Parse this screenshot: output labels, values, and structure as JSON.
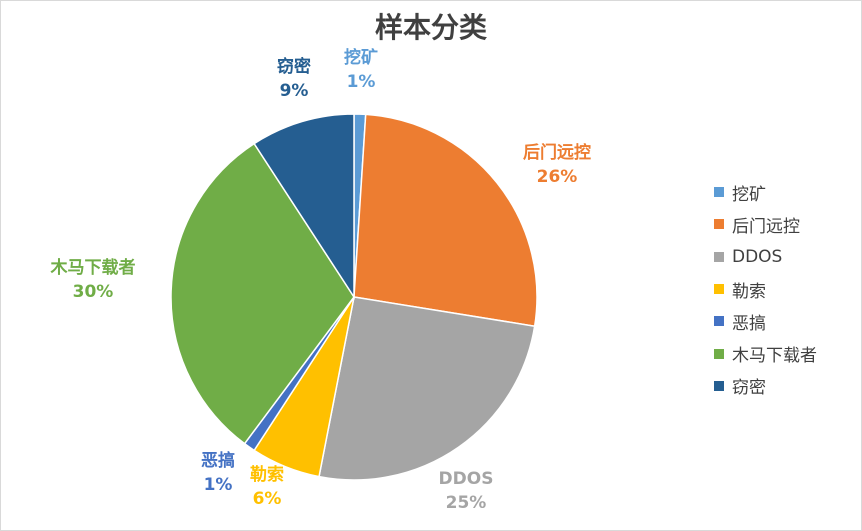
{
  "chart_data": {
    "type": "pie",
    "title": "样本分类",
    "categories": [
      "挖矿",
      "后门远控",
      "DDOS",
      "勒索",
      "恶搞",
      "木马下载者",
      "窃密"
    ],
    "values": [
      1,
      26,
      25,
      6,
      1,
      30,
      9
    ],
    "percent_labels": [
      "1%",
      "26%",
      "25%",
      "6%",
      "1%",
      "30%",
      "9%"
    ],
    "colors": [
      "#5b9bd5",
      "#ed7d31",
      "#a5a5a5",
      "#ffc000",
      "#4472c4",
      "#70ad47",
      "#255e91"
    ],
    "legend_position": "right"
  }
}
